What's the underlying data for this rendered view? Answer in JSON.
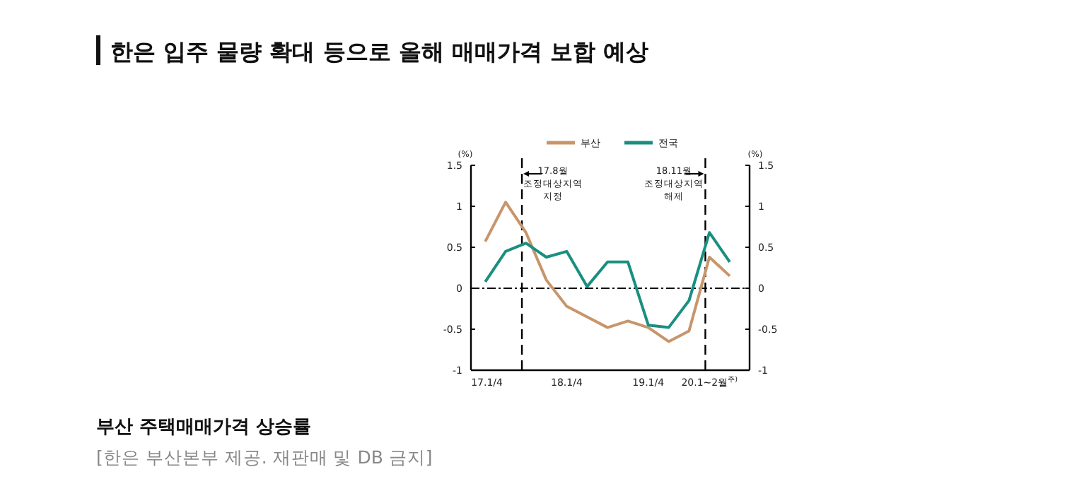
{
  "chart_data": {
    "type": "line",
    "title": "한은 입주 물량 확대 등으로 올해 매매가격 보합 예상",
    "categories": [
      "17.1/4",
      null,
      null,
      null,
      "18.1/4",
      null,
      null,
      null,
      "19.1/4",
      null,
      null,
      "20.1~2월$^{주)}$",
      null
    ],
    "series": [
      {
        "name": "부산",
        "color": "#c8956a",
        "values": [
          0.57,
          1.05,
          0.68,
          0.1,
          -0.22,
          -0.35,
          -0.48,
          -0.4,
          -0.48,
          -0.65,
          -0.52,
          0.38,
          0.15
        ]
      },
      {
        "name": "전국",
        "color": "#1a8f7f",
        "values": [
          0.08,
          0.45,
          0.55,
          0.38,
          0.45,
          0.02,
          0.32,
          0.32,
          -0.45,
          -0.48,
          -0.15,
          0.68,
          0.32
        ]
      }
    ],
    "ylim": [
      -1,
      1.5
    ],
    "yticks": [
      -1,
      -0.5,
      0,
      0.5,
      1,
      1.5
    ],
    "y2lim": [
      -1,
      1.5
    ],
    "y2ticks": [
      -1,
      -0.5,
      0,
      0.5,
      1,
      1.5
    ],
    "ylabel": "(%)",
    "y2label": "(%)",
    "legend": "top",
    "marker": "none",
    "ref_lines": [
      {
        "axis": "y",
        "value": 0,
        "line_style": "dashdot"
      }
    ],
    "annotations": [
      "부산 주택매매가격 상승률",
      "[한은 부산본부 제공. 재판매 및 DB 금지]",
      "17.8월 조정대상지역 지정",
      "18.11월 조정대상지역 해제"
    ]
  }
}
